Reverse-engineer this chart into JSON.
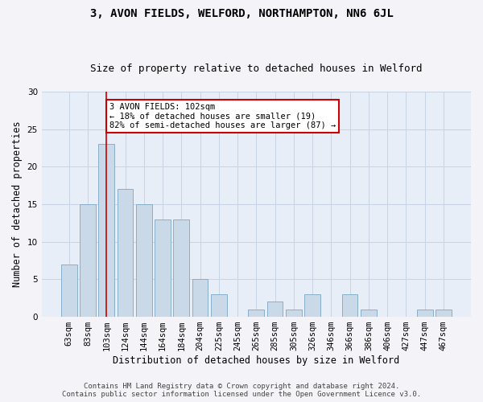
{
  "title": "3, AVON FIELDS, WELFORD, NORTHAMPTON, NN6 6JL",
  "subtitle": "Size of property relative to detached houses in Welford",
  "xlabel": "Distribution of detached houses by size in Welford",
  "ylabel": "Number of detached properties",
  "categories": [
    "63sqm",
    "83sqm",
    "103sqm",
    "124sqm",
    "144sqm",
    "164sqm",
    "184sqm",
    "204sqm",
    "225sqm",
    "245sqm",
    "265sqm",
    "285sqm",
    "305sqm",
    "326sqm",
    "346sqm",
    "366sqm",
    "386sqm",
    "406sqm",
    "427sqm",
    "447sqm",
    "467sqm"
  ],
  "values": [
    7,
    15,
    23,
    17,
    15,
    13,
    13,
    5,
    3,
    0,
    1,
    2,
    1,
    3,
    0,
    3,
    1,
    0,
    0,
    1,
    1
  ],
  "bar_color": "#c9d9e8",
  "bar_edge_color": "#7aa8c8",
  "vline_x_index": 2,
  "vline_color": "#cc0000",
  "annotation_text": "3 AVON FIELDS: 102sqm\n← 18% of detached houses are smaller (19)\n82% of semi-detached houses are larger (87) →",
  "annotation_box_color": "#ffffff",
  "annotation_box_edge": "#cc0000",
  "ylim": [
    0,
    30
  ],
  "yticks": [
    0,
    5,
    10,
    15,
    20,
    25,
    30
  ],
  "grid_color": "#c8d4e4",
  "background_color": "#e8eef8",
  "fig_background_color": "#f4f4f8",
  "footer_line1": "Contains HM Land Registry data © Crown copyright and database right 2024.",
  "footer_line2": "Contains public sector information licensed under the Open Government Licence v3.0.",
  "title_fontsize": 10,
  "subtitle_fontsize": 9,
  "axis_label_fontsize": 8.5,
  "tick_fontsize": 7.5,
  "footer_fontsize": 6.5,
  "annotation_fontsize": 7.5
}
